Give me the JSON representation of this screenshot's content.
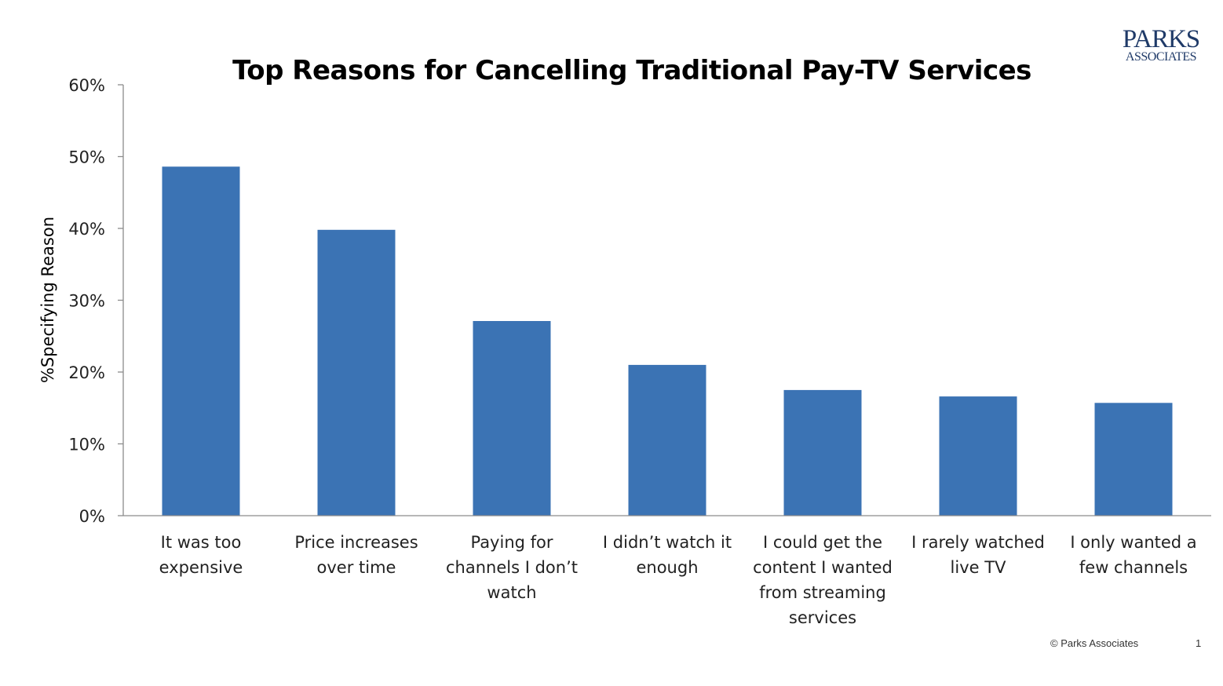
{
  "logo": {
    "line1": "PARKS",
    "line2": "ASSOCIATES"
  },
  "footer": {
    "copyright": "© Parks Associates",
    "page_number": "1"
  },
  "colors": {
    "bar": "#3b73b4",
    "axis": "#8c8c8c",
    "text": "#222222"
  },
  "chart_data": {
    "type": "bar",
    "title": "Top Reasons for Cancelling Traditional Pay-TV Services",
    "xlabel": "",
    "ylabel": "%Specifying Reason",
    "ylim": [
      0,
      60
    ],
    "yticks": [
      "0%",
      "10%",
      "20%",
      "30%",
      "40%",
      "50%",
      "60%"
    ],
    "grid": false,
    "categories": [
      "It was too expensive",
      "Price increases over time",
      "Paying for channels I don’t watch",
      "I didn’t watch it enough",
      "I could get the content I wanted from streaming services",
      "I rarely watched live TV",
      "I only wanted a few channels"
    ],
    "category_lines": [
      [
        "It was too",
        "expensive"
      ],
      [
        "Price increases",
        "over time"
      ],
      [
        "Paying for",
        "channels I don’t",
        "watch"
      ],
      [
        "I didn’t watch it",
        "enough"
      ],
      [
        "I could get the",
        "content I wanted",
        "from streaming",
        "services"
      ],
      [
        "I rarely watched",
        "live TV"
      ],
      [
        "I only wanted a",
        "few channels"
      ]
    ],
    "values": [
      48.6,
      39.8,
      27.1,
      21.0,
      17.5,
      16.6,
      15.7
    ]
  }
}
